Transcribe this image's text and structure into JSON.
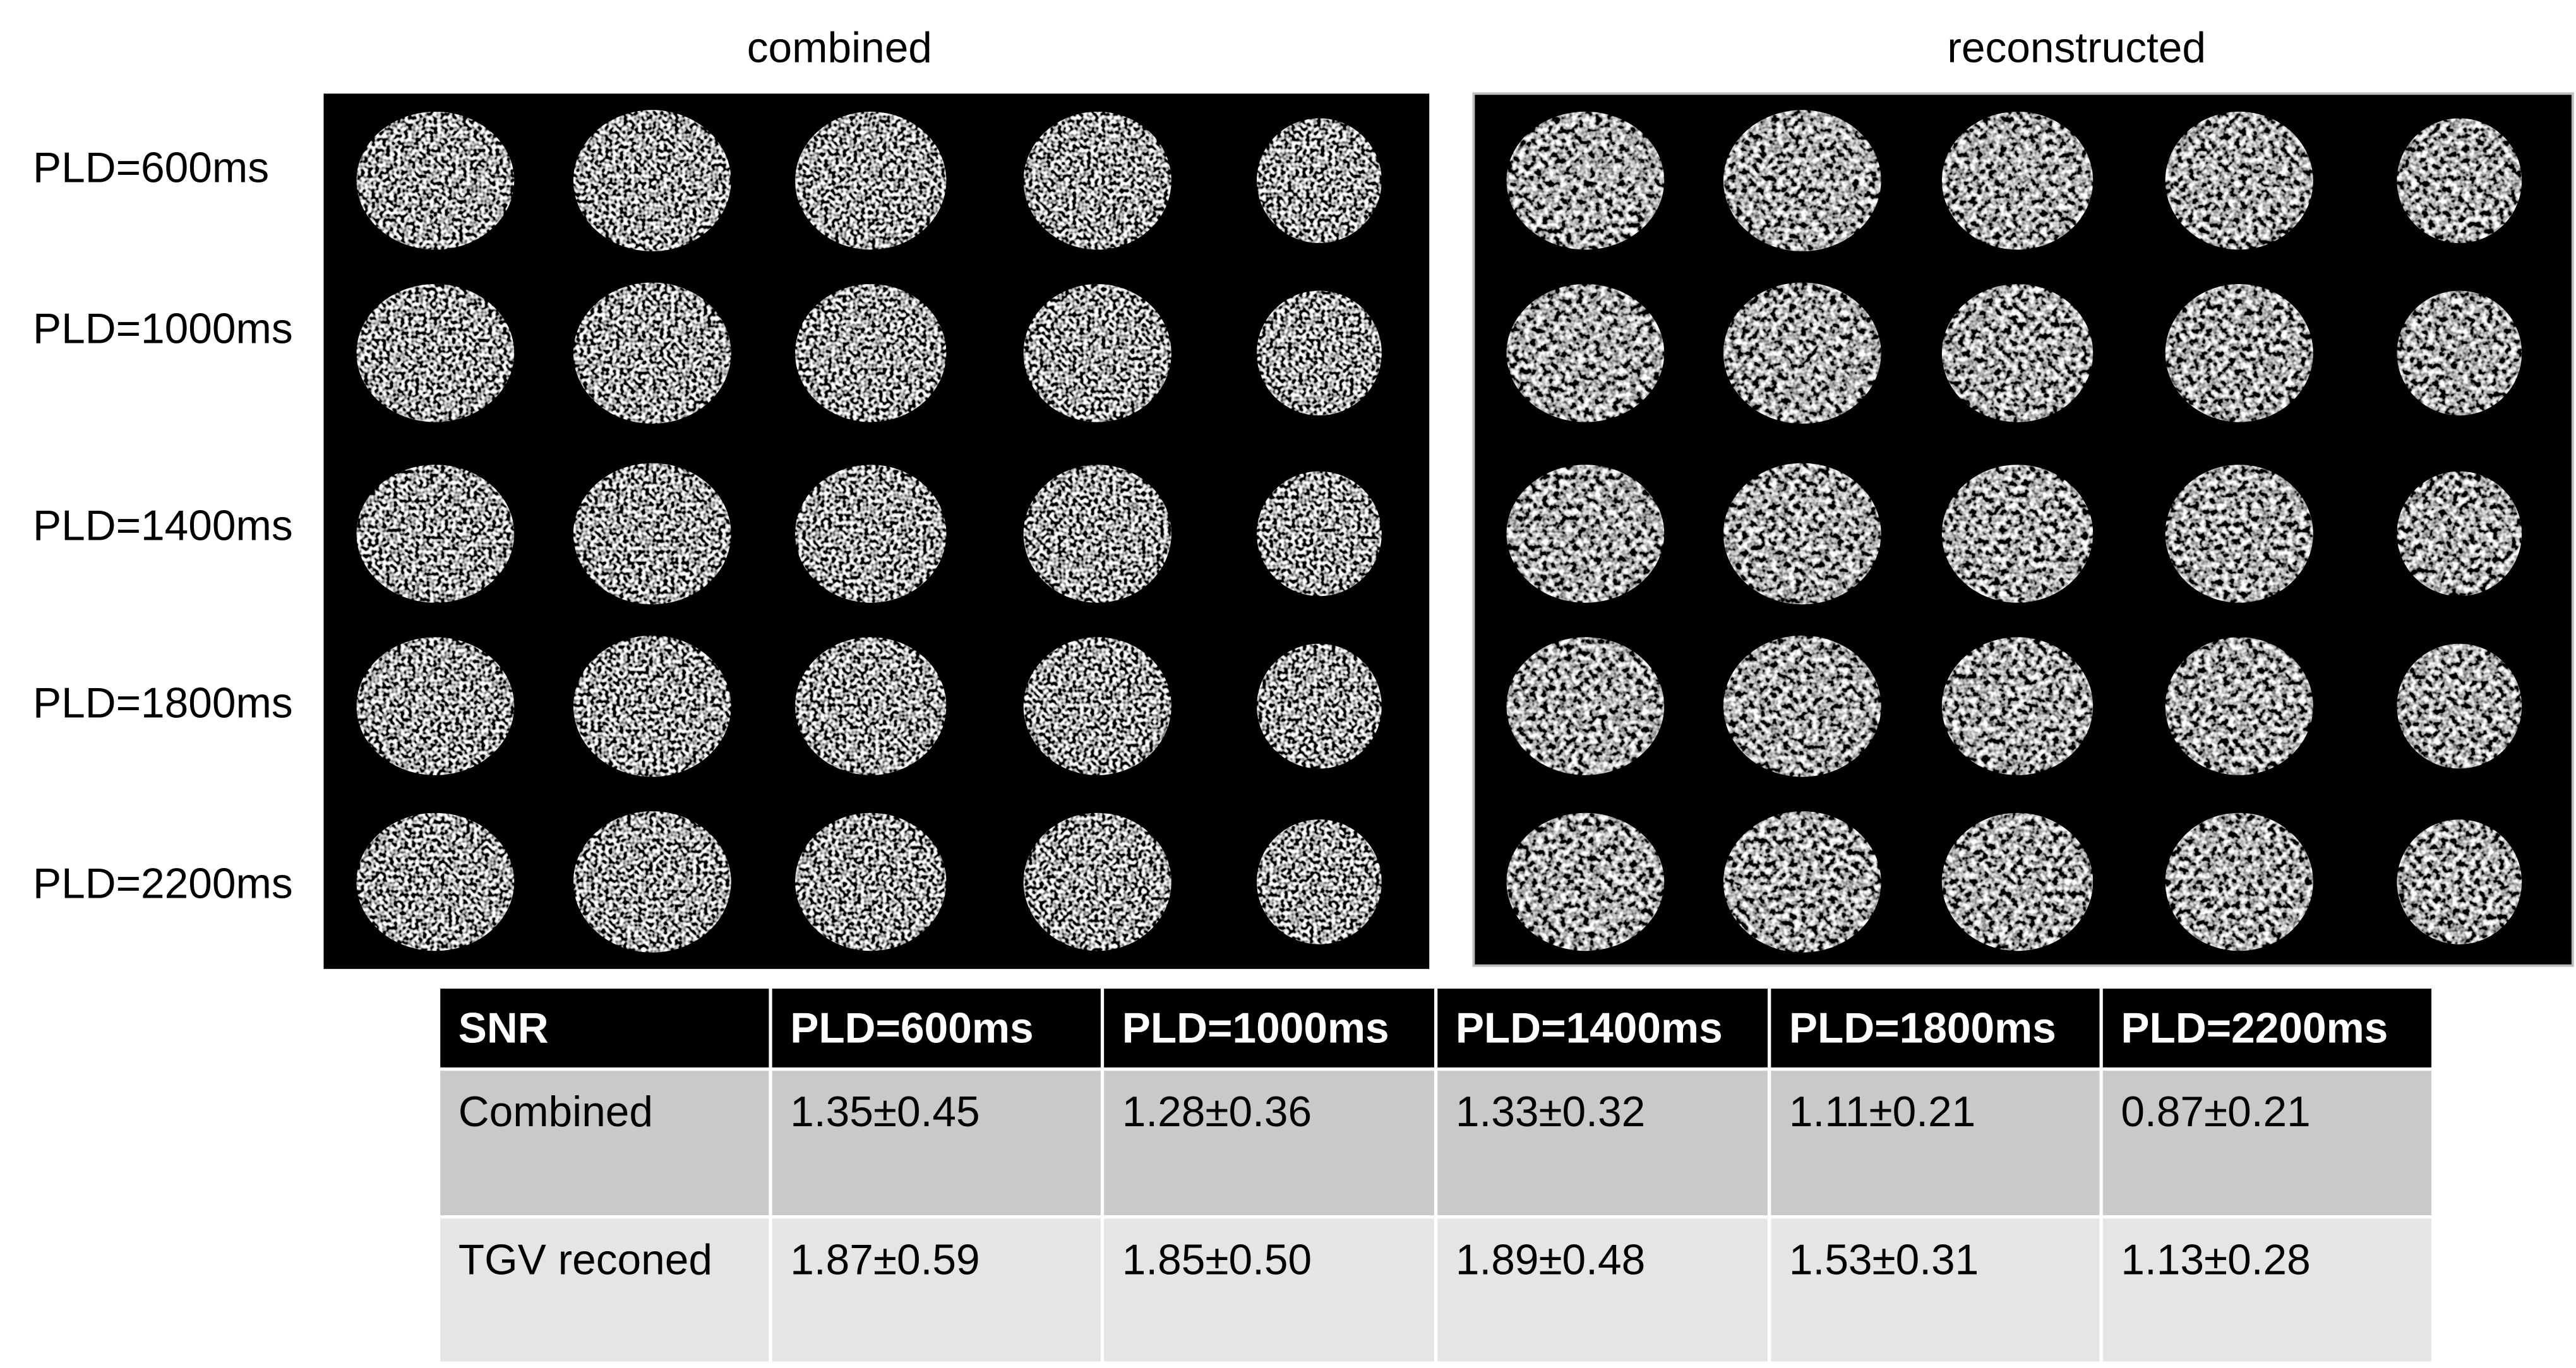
{
  "headings": [
    "combined",
    "reconstructed"
  ],
  "row_labels": [
    "PLD=600ms",
    "PLD=1000ms",
    "PLD=1400ms",
    "PLD=1800ms",
    "PLD=2200ms"
  ],
  "table": {
    "header": [
      "SNR",
      "PLD=600ms",
      "PLD=1000ms",
      "PLD=1400ms",
      "PLD=1800ms",
      "PLD=2200ms"
    ],
    "rows": [
      [
        "Combined",
        "1.35±0.45",
        "1.28±0.36",
        "1.33±0.32",
        "1.11±0.21",
        "0.87±0.21"
      ],
      [
        "TGV reconed",
        "1.87±0.59",
        "1.85±0.50",
        "1.89±0.48",
        "1.53±0.31",
        "1.13±0.28"
      ]
    ]
  }
}
